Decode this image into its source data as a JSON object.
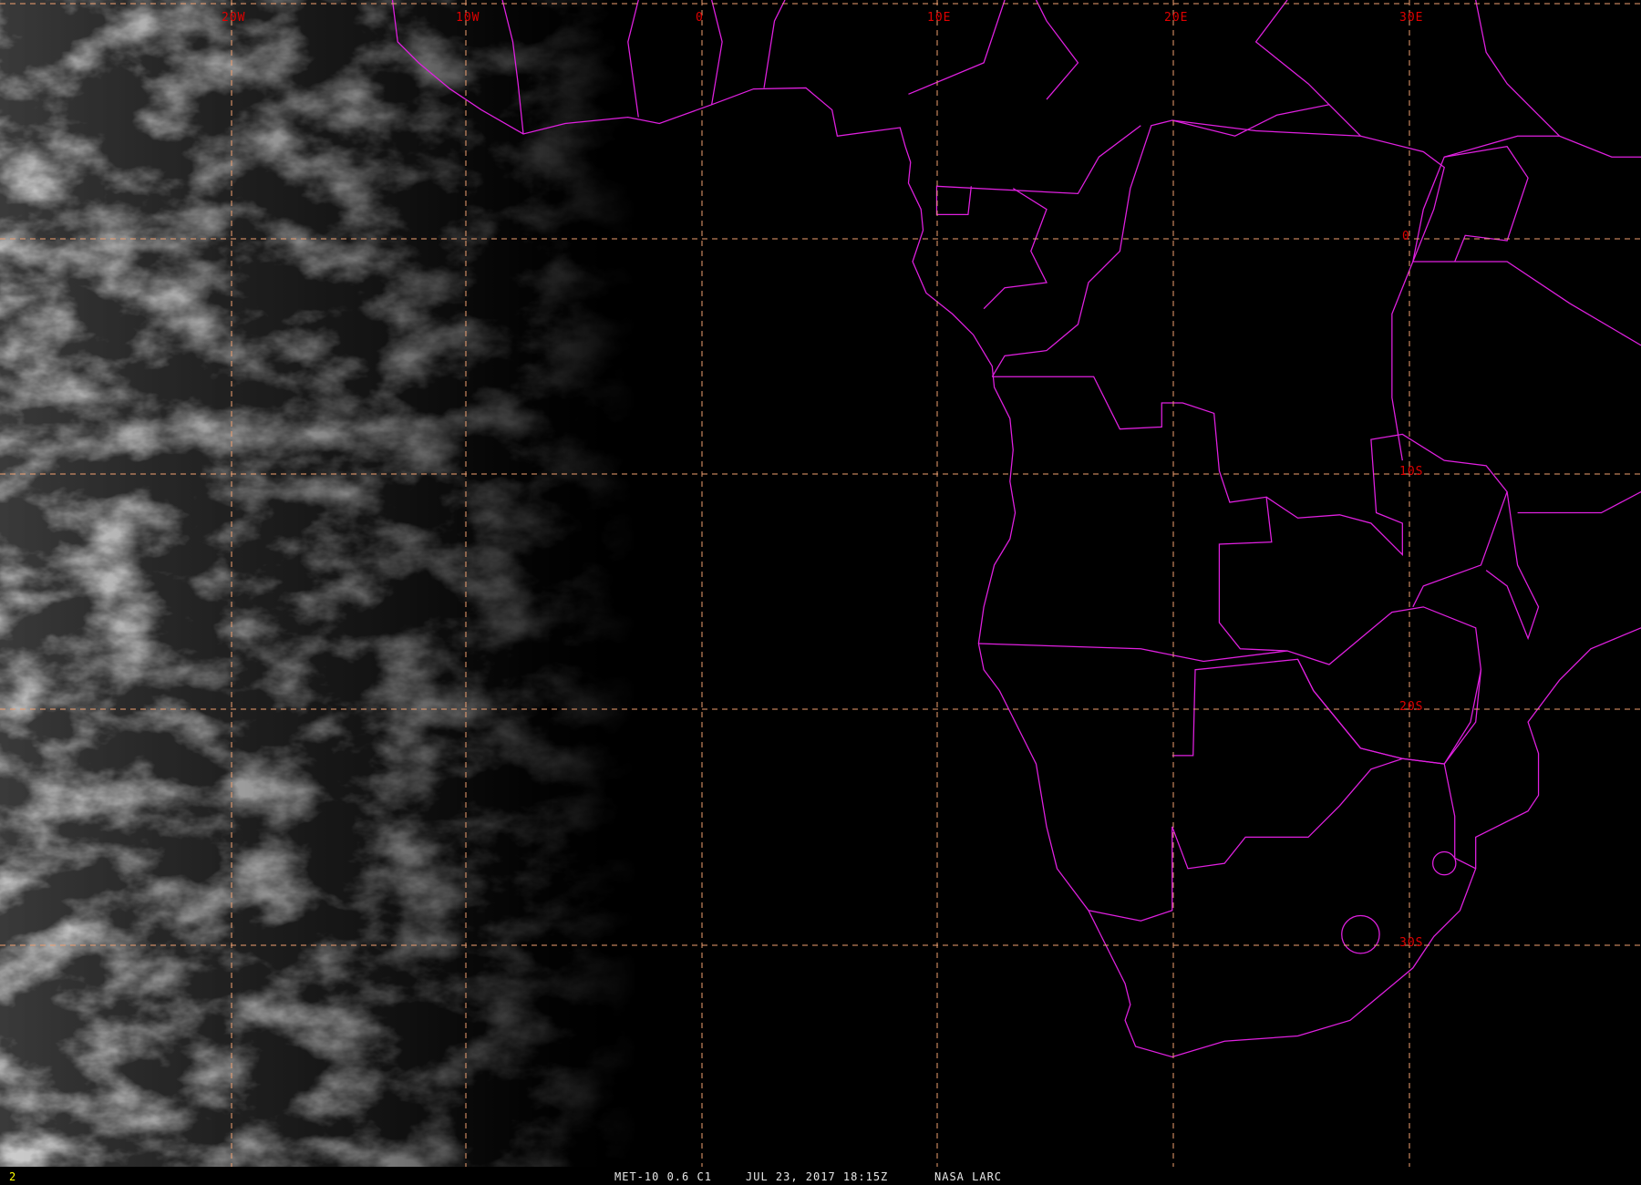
{
  "map": {
    "longitude_labels": [
      "20W",
      "10W",
      "0",
      "10E",
      "20E",
      "30E"
    ],
    "latitude_labels": [
      "0",
      "10S",
      "20S",
      "30S"
    ],
    "colors": {
      "grid": "#f0a070",
      "borders": "#e020e0",
      "labels": "#e00000",
      "frame_number": "#ffff00"
    }
  },
  "footer": {
    "frame_number": "2",
    "product": "MET-10 0.6 C1",
    "datetime": "JUL 23, 2017 18:15Z",
    "source": "NASA LARC"
  }
}
